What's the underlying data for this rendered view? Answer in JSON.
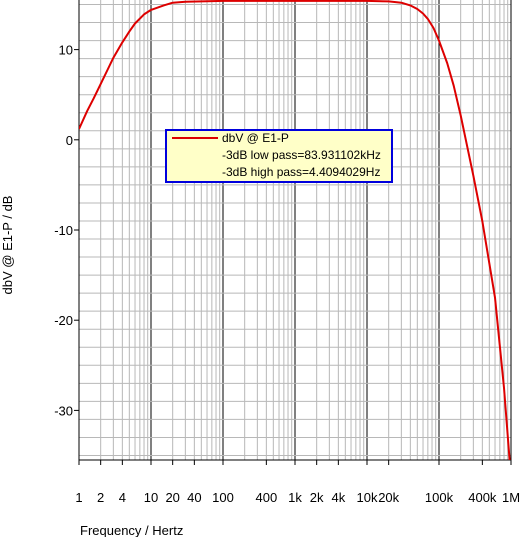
{
  "chart_data": {
    "type": "line",
    "title": "",
    "xlabel": "Frequency / Hertz",
    "ylabel": "dbV @ E1-P / dB",
    "x_scale": "log",
    "xlim": [
      1,
      1000000
    ],
    "ylim": [
      -35,
      15
    ],
    "grid": true,
    "x_ticks": [
      {
        "value": 1,
        "label": "1"
      },
      {
        "value": 2,
        "label": "2"
      },
      {
        "value": 4,
        "label": "4"
      },
      {
        "value": 10,
        "label": "10"
      },
      {
        "value": 20,
        "label": "20"
      },
      {
        "value": 40,
        "label": "40"
      },
      {
        "value": 100,
        "label": "100"
      },
      {
        "value": 400,
        "label": "400"
      },
      {
        "value": 1000,
        "label": "1k"
      },
      {
        "value": 2000,
        "label": "2k"
      },
      {
        "value": 4000,
        "label": "4k"
      },
      {
        "value": 10000,
        "label": "10k"
      },
      {
        "value": 20000,
        "label": "20k"
      },
      {
        "value": 100000,
        "label": "100k"
      },
      {
        "value": 400000,
        "label": "400k"
      },
      {
        "value": 1000000,
        "label": "1M"
      }
    ],
    "y_ticks": [
      {
        "value": 10,
        "label": "10"
      },
      {
        "value": 0,
        "label": "0"
      },
      {
        "value": -10,
        "label": "-10"
      },
      {
        "value": -20,
        "label": "-20"
      },
      {
        "value": -30,
        "label": "-30"
      }
    ],
    "legend": {
      "placement": "center-left",
      "entries": [
        {
          "text": "dbV @ E1-P",
          "has_line": true
        },
        {
          "text": "-3dB low pass=83.931102kHz",
          "has_line": false
        },
        {
          "text": "-3dB high pass=4.4094029Hz",
          "has_line": false
        }
      ]
    },
    "series": [
      {
        "name": "dbV @ E1-P",
        "color": "#dd0000",
        "x": [
          1,
          1.3,
          1.6,
          2,
          2.5,
          3,
          4,
          5,
          6,
          8,
          10,
          15,
          20,
          30,
          50,
          100,
          300,
          1000,
          3000,
          10000,
          20000,
          30000,
          40000,
          50000,
          60000,
          70000,
          84000,
          100000,
          130000,
          160000,
          200000,
          300000,
          400000,
          600000,
          800000,
          1000000
        ],
        "y": [
          1.2,
          3.2,
          4.6,
          6.2,
          7.8,
          9.1,
          10.8,
          12.0,
          12.9,
          13.9,
          14.4,
          14.9,
          15.2,
          15.3,
          15.35,
          15.4,
          15.4,
          15.4,
          15.4,
          15.4,
          15.35,
          15.2,
          14.9,
          14.5,
          14.0,
          13.4,
          12.4,
          11.0,
          8.5,
          6.0,
          2.7,
          -4.0,
          -9.0,
          -17.5,
          -27.5,
          -37.5
        ]
      }
    ]
  }
}
